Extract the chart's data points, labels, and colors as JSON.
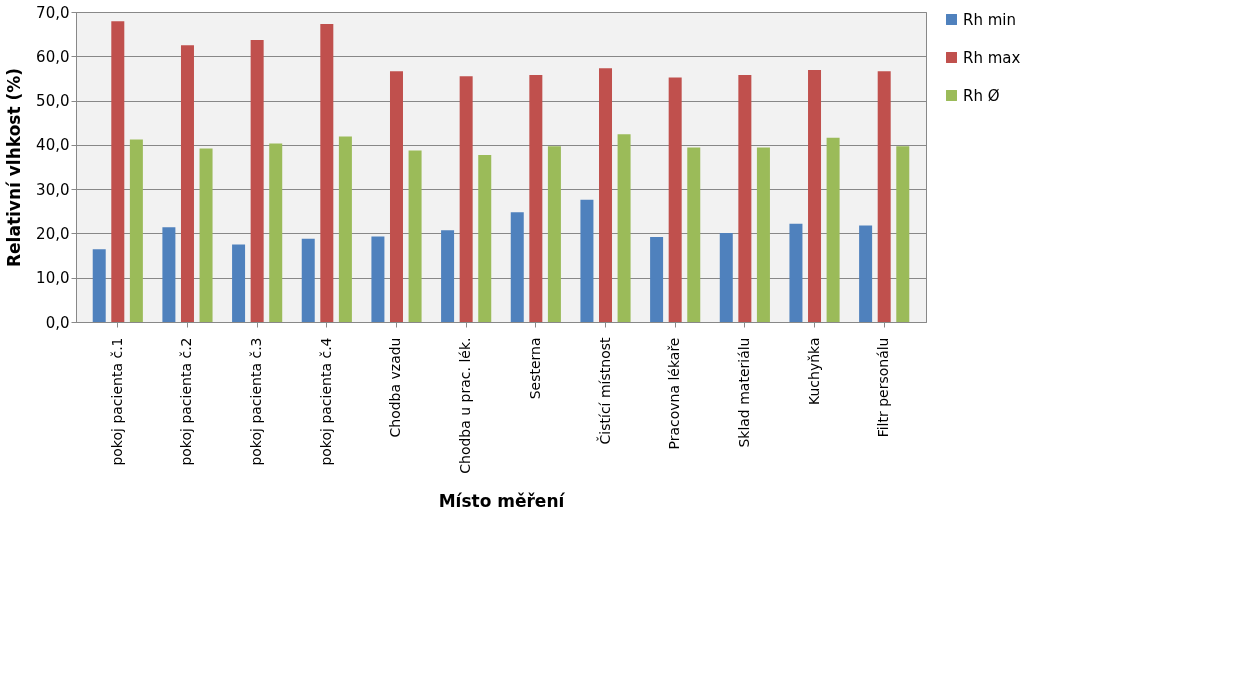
{
  "chart_data": {
    "type": "bar",
    "xlabel": "Místo měření",
    "ylabel": "Relativní vlhkost (%)",
    "categories": [
      "pokoj pacienta č.1",
      "pokoj pacienta č.2",
      "pokoj pacienta č.3",
      "pokoj pacienta č.4",
      "Chodba vzadu",
      "Chodba u prac. lék.",
      "Sesterna",
      "Čistící místnost",
      "Pracovna lékaře",
      "Sklad materiálu",
      "Kuchyňka",
      "Filtr personálu"
    ],
    "series": [
      {
        "name": "Rh min",
        "color": "#4f81bd",
        "values": [
          16.4,
          21.4,
          17.5,
          18.8,
          19.3,
          20.7,
          24.8,
          27.6,
          19.2,
          20.1,
          22.2,
          21.8
        ]
      },
      {
        "name": "Rh max",
        "color": "#c0504d",
        "values": [
          67.9,
          62.5,
          63.7,
          67.3,
          56.6,
          55.5,
          55.8,
          57.3,
          55.2,
          55.8,
          56.9,
          56.6
        ]
      },
      {
        "name": "Rh Ø",
        "color": "#9bbb59",
        "values": [
          41.2,
          39.2,
          40.3,
          41.9,
          38.7,
          37.7,
          39.7,
          42.4,
          39.4,
          39.4,
          41.6,
          39.7
        ]
      }
    ],
    "ylim": [
      0,
      70
    ],
    "yticks": [
      {
        "value": 0,
        "label": "0,0"
      },
      {
        "value": 10,
        "label": "10,0"
      },
      {
        "value": 20,
        "label": "20,0"
      },
      {
        "value": 30,
        "label": "30,0"
      },
      {
        "value": 40,
        "label": "40,0"
      },
      {
        "value": 50,
        "label": "50,0"
      },
      {
        "value": 60,
        "label": "60,0"
      },
      {
        "value": 70,
        "label": "70,0"
      }
    ],
    "grid": "y",
    "legend": "right"
  }
}
